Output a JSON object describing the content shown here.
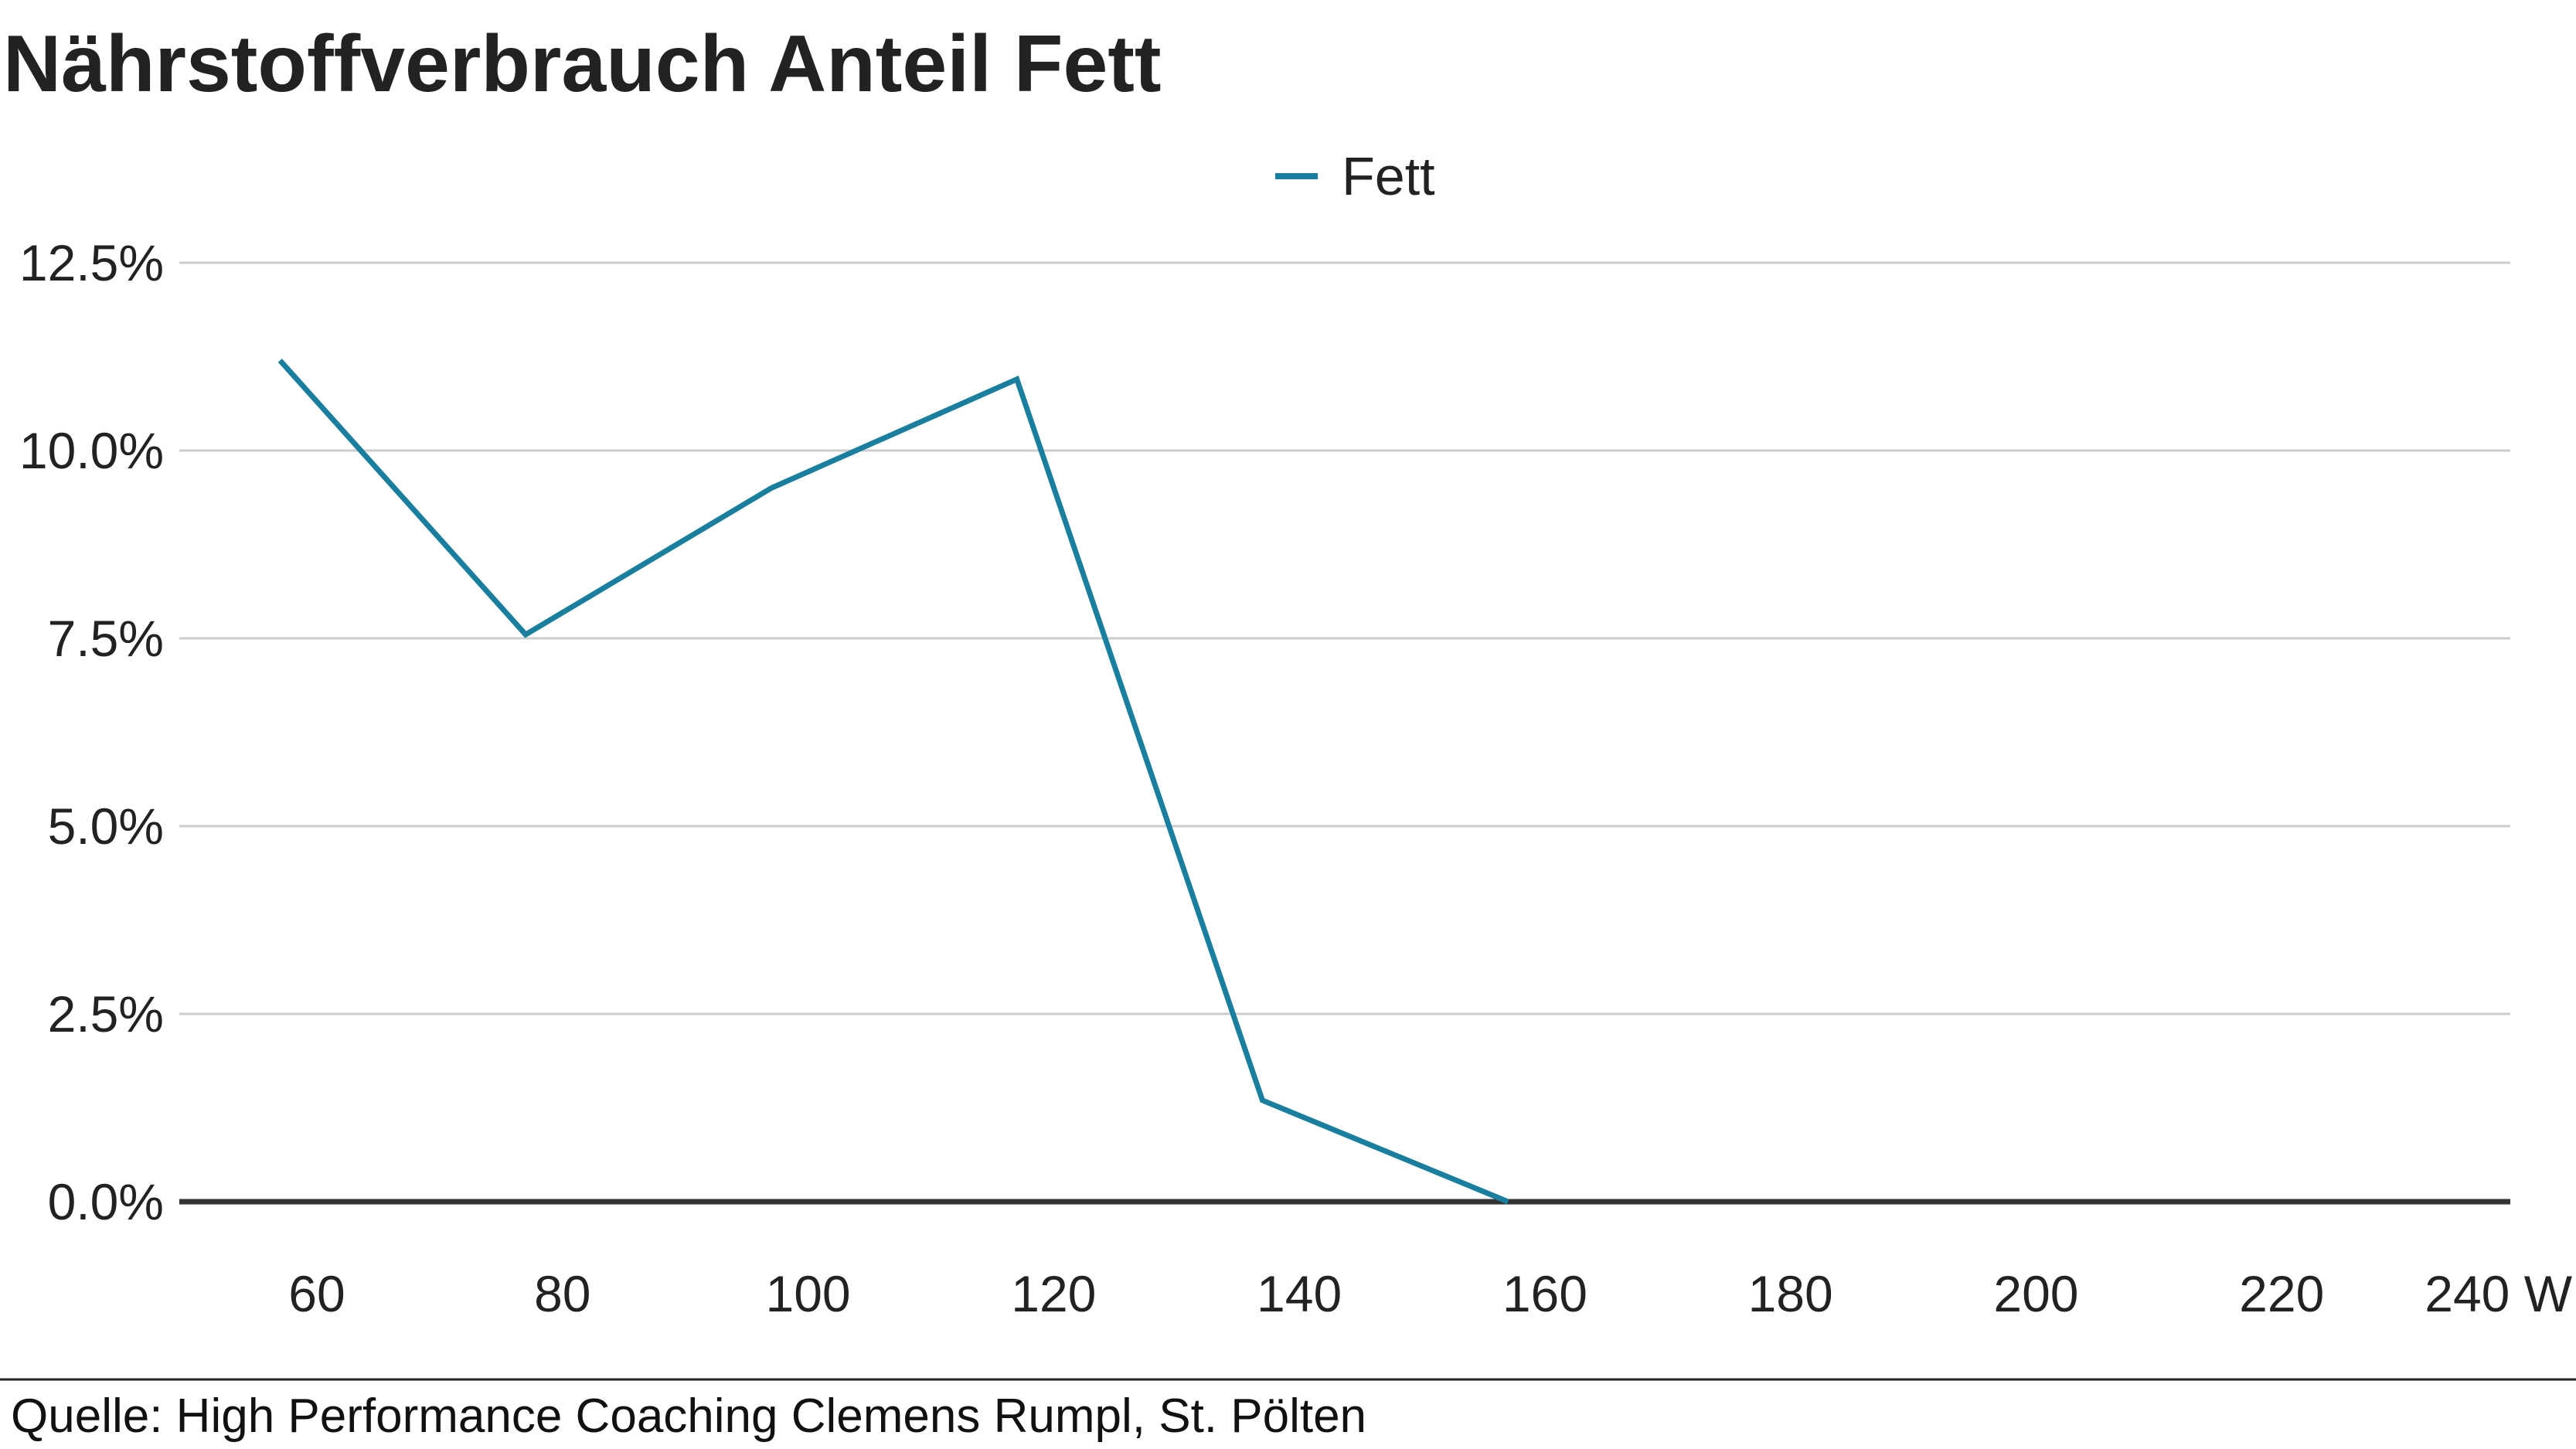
{
  "title": "Nährstoffverbrauch Anteil Fett",
  "source": "Quelle: High Performance Coaching Clemens Rumpl, St. Pölten",
  "colors": {
    "series": "#1a7f9e",
    "grid": "#cccccc",
    "baseline": "#333333",
    "text": "#222222"
  },
  "chart_data": {
    "type": "line",
    "title": "Nährstoffverbrauch Anteil Fett",
    "xlabel": "",
    "ylabel": "",
    "x_unit": "W",
    "xlim": [
      50,
      245
    ],
    "ylim": [
      0,
      12.5
    ],
    "x_ticks": [
      60,
      80,
      100,
      120,
      140,
      160,
      180,
      200,
      220,
      240
    ],
    "x_tick_labels": [
      "60",
      "80",
      "100",
      "120",
      "140",
      "160",
      "180",
      "200",
      "220",
      "240 W"
    ],
    "y_ticks": [
      0,
      2.5,
      5,
      7.5,
      10,
      12.5
    ],
    "y_tick_labels": [
      "0.0%",
      "2.5%",
      "5.0%",
      "7.5%",
      "10.0%",
      "12.5%"
    ],
    "grid": true,
    "legend": "top-center",
    "series": [
      {
        "name": "Fett",
        "x": [
          57,
          77,
          97,
          117,
          137,
          157
        ],
        "values": [
          11.2,
          7.55,
          9.5,
          10.95,
          1.35,
          0
        ]
      }
    ]
  }
}
